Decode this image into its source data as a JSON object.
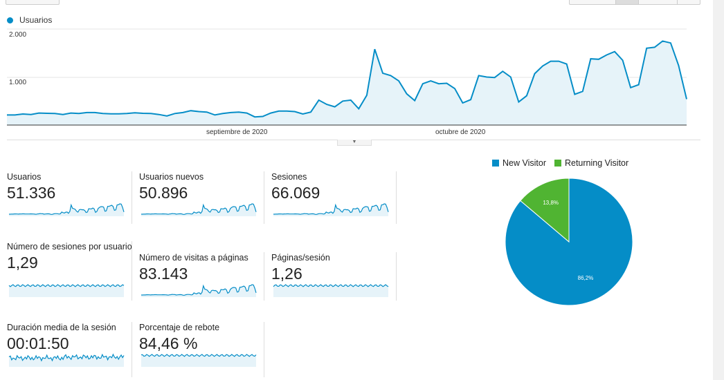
{
  "chart_data": {
    "type": "line",
    "title": "",
    "series": [
      {
        "name": "Usuarios",
        "color": "#058dc7",
        "values": [
          210,
          210,
          230,
          220,
          250,
          245,
          240,
          220,
          250,
          240,
          260,
          260,
          240,
          235,
          235,
          240,
          255,
          245,
          240,
          220,
          190,
          240,
          260,
          300,
          280,
          270,
          210,
          240,
          260,
          270,
          250,
          170,
          180,
          250,
          290,
          290,
          280,
          230,
          270,
          520,
          430,
          380,
          500,
          520,
          340,
          620,
          1580,
          1080,
          1030,
          920,
          650,
          510,
          860,
          920,
          860,
          870,
          760,
          460,
          530,
          1030,
          1000,
          990,
          1120,
          1000,
          480,
          610,
          1070,
          1230,
          1330,
          1330,
          1270,
          640,
          700,
          1380,
          1370,
          1460,
          1530,
          1350,
          780,
          840,
          1600,
          1620,
          1750,
          1710,
          1240,
          540
        ]
      }
    ],
    "x_labels": [
      "septiembre de 2020",
      "octubre de 2020"
    ],
    "y_ticks": [
      "2.000",
      "1.000"
    ],
    "ylim": [
      0,
      2000
    ]
  },
  "legend": {
    "label": "Usuarios"
  },
  "metrics": [
    {
      "label": "Usuarios",
      "value": "51.336"
    },
    {
      "label": "Usuarios nuevos",
      "value": "50.896"
    },
    {
      "label": "Sesiones",
      "value": "66.069"
    },
    {
      "label": "Número de sesiones por usuario",
      "value": "1,29"
    },
    {
      "label": "Número de visitas a páginas",
      "value": "83.143"
    },
    {
      "label": "Páginas/sesión",
      "value": "1,26"
    },
    {
      "label": "Duración media de la sesión",
      "value": "00:01:50"
    },
    {
      "label": "Porcentaje de rebote",
      "value": "84,46 %"
    }
  ],
  "pie": {
    "type": "pie",
    "slices": [
      {
        "name": "New Visitor",
        "value": 86.2,
        "label": "86,2%",
        "color": "#058dc7"
      },
      {
        "name": "Returning Visitor",
        "value": 13.8,
        "label": "13,8%",
        "color": "#50b432"
      }
    ]
  },
  "colors": {
    "line": "#058dc7",
    "fill": "#e6f3f9",
    "spark_fill": "#e6f3f9"
  }
}
